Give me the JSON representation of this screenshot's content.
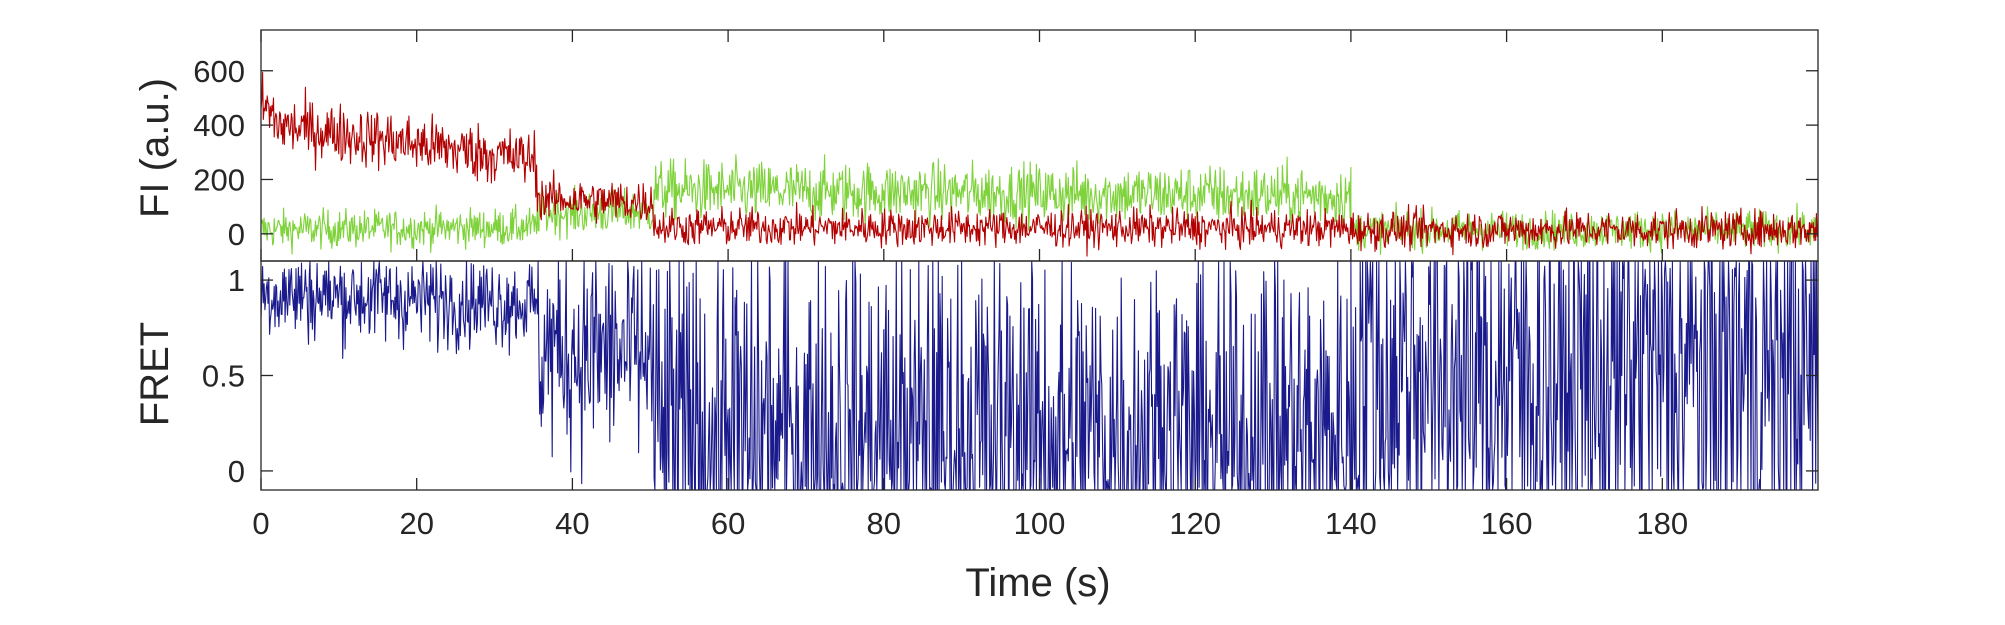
{
  "colors": {
    "acceptor": "#b30000",
    "donor": "#7ed23a",
    "fret": "#1a1a8c",
    "axis": "#262626",
    "background": "#ffffff"
  },
  "chart_data": [
    {
      "type": "line",
      "panel": "top",
      "ylabel": "FI (a.u.)",
      "xlabel": "",
      "xlim": [
        0,
        200
      ],
      "ylim": [
        -100,
        750
      ],
      "yticks": [
        0,
        200,
        400,
        600
      ],
      "ytick_labels": [
        "0",
        "200",
        "400",
        "600"
      ],
      "grid": false,
      "noisy_traces": true,
      "series": [
        {
          "color": "#b30000",
          "segments": [
            {
              "x_start": 0,
              "x_end": 2,
              "mean_start": 480,
              "mean_end": 420,
              "noise": 55
            },
            {
              "x_start": 2,
              "x_end": 35.5,
              "mean_start": 400,
              "mean_end": 270,
              "noise": 55
            },
            {
              "x_start": 35.5,
              "x_end": 50.5,
              "mean_start": 130,
              "mean_end": 115,
              "noise": 40
            },
            {
              "x_start": 50.5,
              "x_end": 140,
              "mean_start": 25,
              "mean_end": 20,
              "noise": 35
            },
            {
              "x_start": 140,
              "x_end": 200,
              "mean_start": 15,
              "mean_end": 15,
              "noise": 35
            }
          ]
        },
        {
          "color": "#7ed23a",
          "segments": [
            {
              "x_start": 0,
              "x_end": 35.5,
              "mean_start": 15,
              "mean_end": 25,
              "noise": 35
            },
            {
              "x_start": 35.5,
              "x_end": 50.5,
              "mean_start": 75,
              "mean_end": 80,
              "noise": 40
            },
            {
              "x_start": 50.5,
              "x_end": 140,
              "mean_start": 160,
              "mean_end": 140,
              "noise": 55
            },
            {
              "x_start": 140,
              "x_end": 200,
              "mean_start": 15,
              "mean_end": 15,
              "noise": 35
            }
          ]
        }
      ]
    },
    {
      "type": "line",
      "panel": "bottom",
      "ylabel": "FRET",
      "xlabel": "Time (s)",
      "xlim": [
        0,
        200
      ],
      "ylim": [
        -0.1,
        1.1
      ],
      "yticks": [
        0,
        0.5,
        1
      ],
      "ytick_labels": [
        "0",
        "0.5",
        "1"
      ],
      "xticks": [
        0,
        20,
        40,
        60,
        80,
        100,
        120,
        140,
        160,
        180
      ],
      "xtick_labels": [
        "0",
        "20",
        "40",
        "60",
        "80",
        "100",
        "120",
        "140",
        "160",
        "180"
      ],
      "grid": false,
      "noisy_traces": true,
      "series": [
        {
          "color": "#1a1a8c",
          "segments": [
            {
              "x_start": 0,
              "x_end": 35.5,
              "mean_start": 0.93,
              "mean_end": 0.88,
              "noise": 0.12
            },
            {
              "x_start": 35.5,
              "x_end": 50.5,
              "mean_start": 0.65,
              "mean_end": 0.6,
              "noise": 0.3
            },
            {
              "x_start": 50.5,
              "x_end": 140,
              "mean_start": 0.15,
              "mean_end": 0.15,
              "noise": 0.55
            },
            {
              "x_start": 140,
              "x_end": 200,
              "mean_start": 0.5,
              "mean_end": 0.5,
              "noise": 0.7
            }
          ]
        }
      ]
    }
  ]
}
